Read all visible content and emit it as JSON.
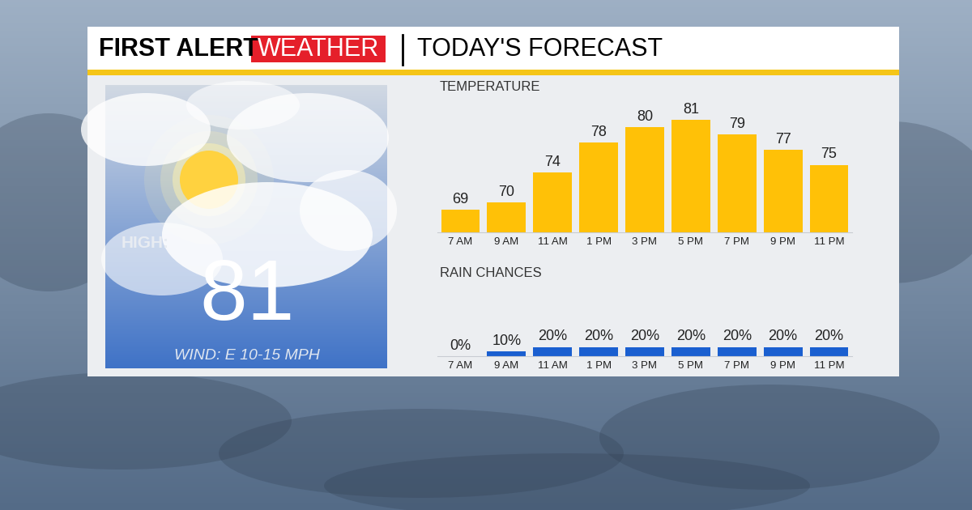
{
  "header": {
    "brand": "FIRST ALERT",
    "brand_highlight": "WEATHER",
    "title": "TODAY'S FORECAST"
  },
  "panel": {
    "high_label": "HIGH:",
    "high": 81,
    "wind": "WIND: E 10-15 MPH"
  },
  "chart_data": [
    {
      "type": "bar",
      "title": "TEMPERATURE",
      "categories": [
        "7 AM",
        "9 AM",
        "11 AM",
        "1 PM",
        "3 PM",
        "5 PM",
        "7 PM",
        "9 PM",
        "11 PM"
      ],
      "values": [
        69,
        70,
        74,
        78,
        80,
        81,
        79,
        77,
        75
      ],
      "color": "#ffc107",
      "ylim": [
        66,
        84
      ],
      "data_labels": true,
      "tick_labels": "x",
      "grid": false
    },
    {
      "type": "bar",
      "title": "RAIN CHANCES",
      "categories": [
        "7 AM",
        "9 AM",
        "11 AM",
        "1 PM",
        "3 PM",
        "5 PM",
        "7 PM",
        "9 PM",
        "11 PM"
      ],
      "values": [
        0,
        10,
        20,
        20,
        20,
        20,
        20,
        20,
        20
      ],
      "value_labels": [
        "0%",
        "10%",
        "20%",
        "20%",
        "20%",
        "20%",
        "20%",
        "20%",
        "20%"
      ],
      "color": "#1a5fd0",
      "ylim": [
        0,
        70
      ],
      "data_labels": true,
      "tick_labels": "x",
      "grid": false
    }
  ]
}
